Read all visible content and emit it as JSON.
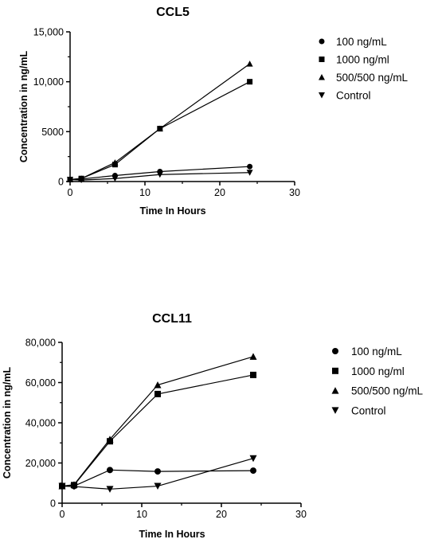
{
  "chart_data": [
    {
      "type": "line",
      "title": "CCL5",
      "xlabel": "Time In Hours",
      "ylabel": "Concentration in ng/mL",
      "xlim": [
        0,
        30
      ],
      "ylim": [
        0,
        15000
      ],
      "xticks": [
        "0",
        "10",
        "20",
        "30"
      ],
      "yticks": [
        "0",
        "5000",
        "10,000",
        "15,000"
      ],
      "legend_position": "right",
      "x": [
        0,
        1.5,
        6,
        12,
        24
      ],
      "series": [
        {
          "name": "100 ng/mL",
          "marker": "circle",
          "values": [
            200,
            250,
            600,
            1000,
            1500
          ]
        },
        {
          "name": "1000 ng/ml",
          "marker": "square",
          "values": [
            200,
            300,
            1700,
            5300,
            10000
          ]
        },
        {
          "name": "500/500 ng/mL",
          "marker": "triangle-up",
          "values": [
            200,
            300,
            1900,
            5300,
            11800
          ]
        },
        {
          "name": "Control",
          "marker": "triangle-down",
          "values": [
            200,
            150,
            300,
            700,
            900
          ]
        }
      ]
    },
    {
      "type": "line",
      "title": "CCL11",
      "xlabel": "Time In Hours",
      "ylabel": "Concentration in ng/mL",
      "xlim": [
        0,
        30
      ],
      "ylim": [
        0,
        80000
      ],
      "xticks": [
        "0",
        "10",
        "20",
        "30"
      ],
      "yticks": [
        "0",
        "20,000",
        "40,000",
        "60,000",
        "80,000"
      ],
      "legend_position": "right",
      "x": [
        0,
        1.5,
        6,
        12,
        24
      ],
      "series": [
        {
          "name": "100 ng/mL",
          "marker": "circle",
          "values": [
            8500,
            8500,
            16500,
            15800,
            16200
          ]
        },
        {
          "name": "1000 ng/ml",
          "marker": "square",
          "values": [
            8500,
            9000,
            30800,
            54300,
            63800
          ]
        },
        {
          "name": "500/500 ng/mL",
          "marker": "triangle-up",
          "values": [
            8500,
            9200,
            31800,
            58800,
            72900
          ]
        },
        {
          "name": "Control",
          "marker": "triangle-down",
          "values": [
            8500,
            8300,
            7000,
            8500,
            22300
          ]
        }
      ]
    }
  ]
}
